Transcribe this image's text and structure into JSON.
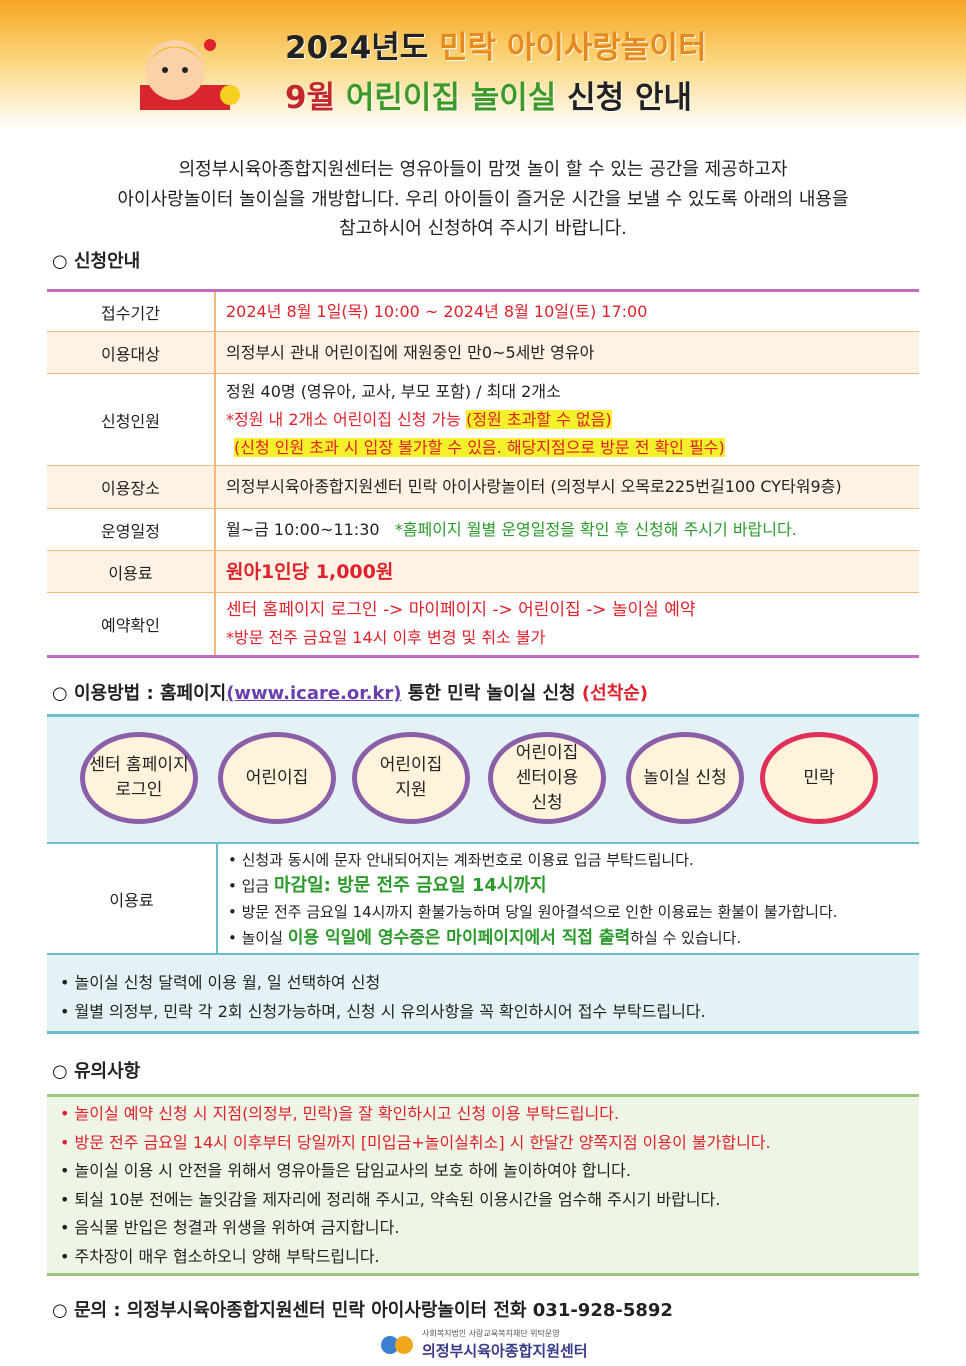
{
  "header": {
    "year": "2024년도",
    "place": "민락 아이사랑놀이터",
    "month": "9월",
    "room": "어린이집 놀이실",
    "notice": "신청 안내"
  },
  "intro": [
    "의정부시육아종합지원센터는 영유아들이 맘껏 놀이 할 수 있는 공간을 제공하고자",
    "아이사랑놀이터 놀이실을 개방합니다. 우리 아이들이 즐거운 시간을 보낼 수 있도록 아래의 내용을",
    "참고하시어 신청하여 주시기 바랍니다."
  ],
  "application": {
    "heading": "○ 신청안내",
    "rows": [
      {
        "label": "접수기간",
        "lines": [
          [
            "2024년 8월 1일(목) 10:00 ~ 2024년 8월 10일(토) 17:00"
          ]
        ]
      },
      {
        "label": "이용대상",
        "lines": [
          [
            "의정부시 관내 어린이집에 재원중인 만0~5세반 영유아"
          ]
        ]
      },
      {
        "label": "신청인원",
        "lines": [
          [
            "정원 40명 (영유아, 교사, 부모 포함) / 최대 2개소"
          ],
          [
            "*정원 내 2개소 어린이집 신청 가능",
            "(정원 초과할 수 없음)"
          ],
          [
            "(신청 인원 초과 시 입장 불가할 수 있음. 해당지점으로 방문 전 확인 필수)"
          ]
        ]
      },
      {
        "label": "이용장소",
        "lines": [
          [
            "의정부시육아종합지원센터 민락 아이사랑놀이터 (의정부시 오목로225번길100 CY타워9층)"
          ]
        ]
      },
      {
        "label": "운영일정",
        "lines": [
          [
            "월~금 10:00~11:30",
            "*홈페이지 월별 운영일정을 확인 후 신청해 주시기 바랍니다."
          ]
        ]
      },
      {
        "label": "이용료",
        "lines": [
          [
            "원아1인당 1,000원"
          ]
        ]
      },
      {
        "label": "예약확인",
        "lines": [
          [
            "센터 홈페이지 로그인 -> 마이페이지 -> 어린이집 -> 놀이실 예약"
          ],
          [
            "*방문 전주 금요일 14시 이후 변경 및 취소 불가"
          ]
        ]
      }
    ]
  },
  "method": {
    "heading": [
      "○ 이용방법 : 홈페이지",
      "(www.icare.or.kr)",
      "통한 민락 놀이실 신청",
      "(선착순)"
    ],
    "steps": [
      [
        "센터 홈페이지",
        "로그인"
      ],
      [
        "어린이집"
      ],
      [
        "어린이집",
        "지원"
      ],
      [
        "어린이집",
        "센터이용",
        "신청"
      ],
      [
        "놀이실 신청"
      ],
      [
        "민락"
      ]
    ],
    "fee_label": "이용료",
    "fee": [
      [
        "• 신청과 동시에 문자 안내되어지는 계좌번호로 이용료 입금 부탁드립니다."
      ],
      [
        "• 입금 ",
        "마감일: 방문 전주 금요일 14시까지"
      ],
      [
        "• 방문 전주 금요일 14시까지 환불가능하며 당일 원아결석으로 인한 이용료는 환불이 불가합니다."
      ],
      [
        "• 놀이실 ",
        "이용 익일에 영수증은 마이페이지에서 직접 출력",
        "하실 수 있습니다."
      ]
    ],
    "notes": [
      "• 놀이실 신청 달력에 이용 월, 일 선택하여 신청",
      "• 월별 의정부, 민락 각 2회 신청가능하며, 신청 시 유의사항을 꼭 확인하시어 접수 부탁드립니다."
    ]
  },
  "cautions": {
    "heading": "○ 유의사항",
    "items": [
      "• 놀이실 예약 신청 시 지점(의정부, 민락)을 잘 확인하시고 신청 이용 부탁드립니다.",
      "• 방문 전주 금요일 14시 이후부터 당일까지 [미입금+놀이실취소] 시 한달간 양쪽지점 이용이 불가합니다.",
      "• 놀이실 이용 시 안전을 위해서 영유아들은 담임교사의 보호 하에 놀이하여야 합니다.",
      "• 퇴실 10분 전에는 놀잇감을 제자리에 정리해 주시고, 약속된 이용시간을 엄수해 주시기 바랍니다.",
      "• 음식물 반입은 청결과 위생을 위하여 금지합니다.",
      "• 주차장이 매우 협소하오니 양해 부탁드립니다."
    ]
  },
  "footer": {
    "contact": "○ 문의 : 의정부시육아종합지원센터 민락 아이사랑놀이터 전화 031-928-5892",
    "logo_sub": "사회복지법인 사랑교육복지재단 위탁운영",
    "logo_name": "의정부시육아종합지원센터"
  }
}
